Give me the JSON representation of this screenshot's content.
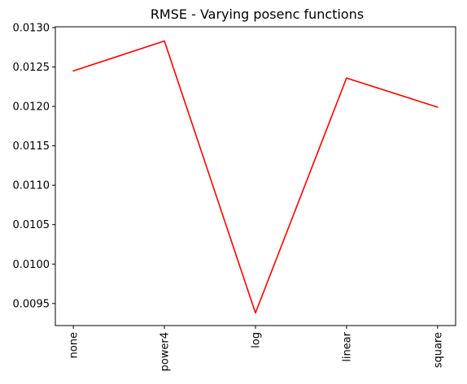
{
  "chart_data": {
    "type": "line",
    "title": "RMSE - Varying posenc functions",
    "xlabel": "",
    "ylabel": "",
    "categories": [
      "none",
      "power4",
      "log",
      "linear",
      "square"
    ],
    "series": [
      {
        "values": [
          0.01245,
          0.01283,
          0.00938,
          0.01236,
          0.01199
        ],
        "color": "#ff0000"
      }
    ],
    "yticks": [
      "0.0095",
      "0.0100",
      "0.0105",
      "0.0110",
      "0.0115",
      "0.0120",
      "0.0125",
      "0.0130"
    ],
    "ylim": [
      0.00922,
      0.01301
    ],
    "grid": false,
    "x_tick_rotation": "vertical"
  }
}
